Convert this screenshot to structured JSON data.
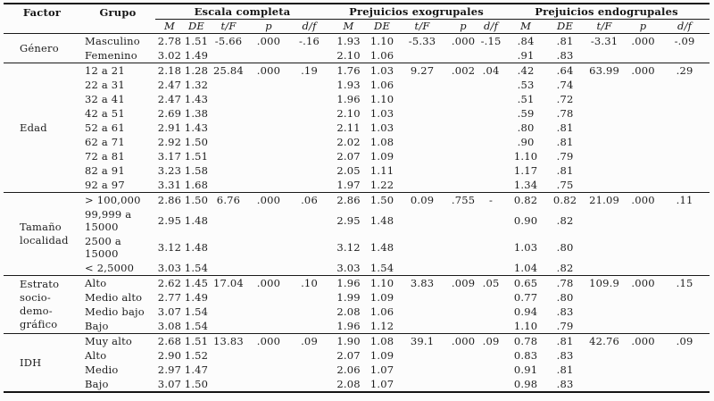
{
  "table": {
    "header": {
      "factor": "Factor",
      "grupo": "Grupo",
      "groups": [
        {
          "label": "Escala completa",
          "sub": [
            "M",
            "DE",
            "t/F",
            "p",
            "d/f"
          ]
        },
        {
          "label": "Prejuicios exogrupales",
          "sub": [
            "M",
            "DE",
            "t/F",
            "p",
            "d/f"
          ]
        },
        {
          "label": "Prejuicios endogrupales",
          "sub": [
            "M",
            "DE",
            "t/F",
            "p",
            "d/f"
          ]
        }
      ]
    },
    "sections": [
      {
        "id": "genero",
        "factor": "Género",
        "rows": [
          {
            "grupo": "Masculino",
            "values": [
              "2.78",
              "1.51",
              "-5.66",
              ".000",
              "-.16",
              "1.93",
              "1.10",
              "-5.33",
              ".000",
              "-.15",
              ".84",
              ".81",
              "-3.31",
              ".000",
              "-.09"
            ]
          },
          {
            "grupo": "Femenino",
            "values": [
              "3.02",
              "1.49",
              "",
              "",
              "",
              "2.10",
              "1.06",
              "",
              "",
              "",
              ".91",
              ".83",
              "",
              "",
              ""
            ]
          }
        ]
      },
      {
        "id": "edad",
        "factor": "Edad",
        "rows": [
          {
            "grupo": "12 a 21",
            "values": [
              "2.18",
              "1.28",
              "25.84",
              ".000",
              ".19",
              "1.76",
              "1.03",
              "9.27",
              ".002",
              ".04",
              ".42",
              ".64",
              "63.99",
              ".000",
              ".29"
            ]
          },
          {
            "grupo": "22 a 31",
            "values": [
              "2.47",
              "1.32",
              "",
              "",
              "",
              "1.93",
              "1.06",
              "",
              "",
              "",
              ".53",
              ".74",
              "",
              "",
              ""
            ]
          },
          {
            "grupo": "32 a 41",
            "values": [
              "2.47",
              "1.43",
              "",
              "",
              "",
              "1.96",
              "1.10",
              "",
              "",
              "",
              ".51",
              ".72",
              "",
              "",
              ""
            ]
          },
          {
            "grupo": "42 a 51",
            "values": [
              "2.69",
              "1.38",
              "",
              "",
              "",
              "2.10",
              "1.03",
              "",
              "",
              "",
              ".59",
              ".78",
              "",
              "",
              ""
            ]
          },
          {
            "grupo": "52 a 61",
            "values": [
              "2.91",
              "1.43",
              "",
              "",
              "",
              "2.11",
              "1.03",
              "",
              "",
              "",
              ".80",
              ".81",
              "",
              "",
              ""
            ]
          },
          {
            "grupo": "62 a 71",
            "values": [
              "2.92",
              "1.50",
              "",
              "",
              "",
              "2.02",
              "1.08",
              "",
              "",
              "",
              ".90",
              ".81",
              "",
              "",
              ""
            ]
          },
          {
            "grupo": "72 a 81",
            "values": [
              "3.17",
              "1.51",
              "",
              "",
              "",
              "2.07",
              "1.09",
              "",
              "",
              "",
              "1.10",
              ".79",
              "",
              "",
              ""
            ]
          },
          {
            "grupo": "82 a 91",
            "values": [
              "3.23",
              "1.58",
              "",
              "",
              "",
              "2.05",
              "1.11",
              "",
              "",
              "",
              "1.17",
              ".81",
              "",
              "",
              ""
            ]
          },
          {
            "grupo": "92 a 97",
            "values": [
              "3.31",
              "1.68",
              "",
              "",
              "",
              "1.97",
              "1.22",
              "",
              "",
              "",
              "1.34",
              ".75",
              "",
              "",
              ""
            ]
          }
        ]
      },
      {
        "id": "tamano-localidad",
        "factor": "Tamaño\nlocalidad",
        "rows": [
          {
            "grupo": "> 100,000",
            "values": [
              "2.86",
              "1.50",
              "6.76",
              ".000",
              ".06",
              "2.86",
              "1.50",
              "0.09",
              ".755",
              "-",
              "0.82",
              "0.82",
              "21.09",
              ".000",
              ".11"
            ]
          },
          {
            "grupo": "99,999 a\n15000",
            "values": [
              "2.95",
              "1.48",
              "",
              "",
              "",
              "2.95",
              "1.48",
              "",
              "",
              "",
              "0.90",
              ".82",
              "",
              "",
              ""
            ]
          },
          {
            "grupo": "2500 a\n15000",
            "values": [
              "3.12",
              "1.48",
              "",
              "",
              "",
              "3.12",
              "1.48",
              "",
              "",
              "",
              "1.03",
              ".80",
              "",
              "",
              ""
            ]
          },
          {
            "grupo": "< 2,5000",
            "values": [
              "3.03",
              "1.54",
              "",
              "",
              "",
              "3.03",
              "1.54",
              "",
              "",
              "",
              "1.04",
              ".82",
              "",
              "",
              ""
            ]
          }
        ]
      },
      {
        "id": "estrato",
        "factor": "Estrato\nsocio-\ndemo-\ngráfico",
        "rows": [
          {
            "grupo": "Alto",
            "values": [
              "2.62",
              "1.45",
              "17.04",
              ".000",
              ".10",
              "1.96",
              "1.10",
              "3.83",
              ".009",
              ".05",
              "0.65",
              ".78",
              "109.9",
              ".000",
              ".15"
            ]
          },
          {
            "grupo": "Medio alto",
            "values": [
              "2.77",
              "1.49",
              "",
              "",
              "",
              "1.99",
              "1.09",
              "",
              "",
              "",
              "0.77",
              ".80",
              "",
              "",
              ""
            ]
          },
          {
            "grupo": "Medio bajo",
            "values": [
              "3.07",
              "1.54",
              "",
              "",
              "",
              "2.08",
              "1.06",
              "",
              "",
              "",
              "0.94",
              ".83",
              "",
              "",
              ""
            ]
          },
          {
            "grupo": "Bajo",
            "values": [
              "3.08",
              "1.54",
              "",
              "",
              "",
              "1.96",
              "1.12",
              "",
              "",
              "",
              "1.10",
              ".79",
              "",
              "",
              ""
            ]
          }
        ]
      },
      {
        "id": "idh",
        "factor": "IDH",
        "rows": [
          {
            "grupo": "Muy alto",
            "values": [
              "2.68",
              "1.51",
              "13.83",
              ".000",
              ".09",
              "1.90",
              "1.08",
              "39.1",
              ".000",
              ".09",
              "0.78",
              ".81",
              "42.76",
              ".000",
              ".09"
            ]
          },
          {
            "grupo": "Alto",
            "values": [
              "2.90",
              "1.52",
              "",
              "",
              "",
              "2.07",
              "1.09",
              "",
              "",
              "",
              "0.83",
              ".83",
              "",
              "",
              ""
            ]
          },
          {
            "grupo": "Medio",
            "values": [
              "2.97",
              "1.47",
              "",
              "",
              "",
              "2.06",
              "1.07",
              "",
              "",
              "",
              "0.91",
              ".81",
              "",
              "",
              ""
            ]
          },
          {
            "grupo": "Bajo",
            "values": [
              "3.07",
              "1.50",
              "",
              "",
              "",
              "2.08",
              "1.07",
              "",
              "",
              "",
              "0.98",
              ".83",
              "",
              "",
              ""
            ]
          }
        ]
      }
    ],
    "colors": {
      "text": "#1e1e1e",
      "rule": "#1a1a1a",
      "background": "#fcfcfc"
    }
  }
}
